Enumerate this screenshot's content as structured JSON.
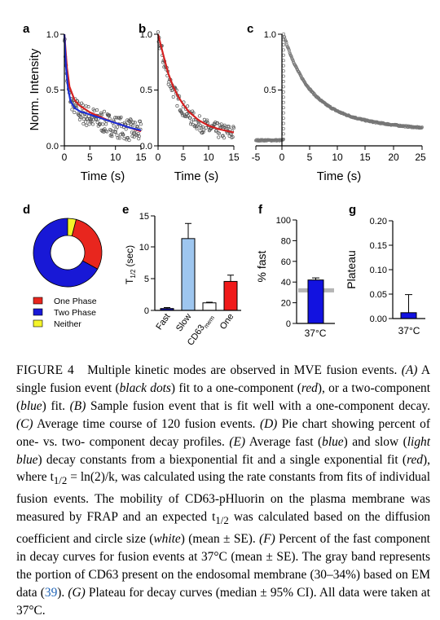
{
  "panels": {
    "a": {
      "letter": "a",
      "ylabel": "Norm. Intensity",
      "xlabel": "Time (s)",
      "yticks": [
        "0.0",
        "0.5",
        "1.0"
      ],
      "xticks": [
        "0",
        "5",
        "10",
        "15"
      ]
    },
    "b": {
      "letter": "b",
      "xlabel": "Time (s)",
      "yticks": [
        "0.0",
        "0.5",
        "1.0"
      ],
      "xticks": [
        "0",
        "5",
        "10",
        "15"
      ]
    },
    "c": {
      "letter": "c",
      "xlabel": "Time (s)",
      "yticks": [
        "0.5",
        "1.0"
      ],
      "xticks": [
        "-5",
        "0",
        "5",
        "10",
        "15",
        "20",
        "25"
      ]
    },
    "d": {
      "letter": "d",
      "legend": [
        "One Phase",
        "Two Phase",
        "Neither"
      ]
    },
    "e": {
      "letter": "e",
      "ylabel_main": "T",
      "ylabel_sub": "1/2",
      "ylabel_unit": "(sec)",
      "yticks": [
        "0",
        "5",
        "10",
        "15"
      ],
      "cat_fast": "Fast",
      "cat_slow": "Slow",
      "cat_cd63": "CD63",
      "cat_cd63_sub": "mem",
      "cat_one": "One"
    },
    "f": {
      "letter": "f",
      "ylabel": "% fast",
      "yticks": [
        "0",
        "20",
        "40",
        "60",
        "80",
        "100"
      ],
      "xtick": "37°C"
    },
    "g": {
      "letter": "g",
      "ylabel": "Plateau",
      "yticks": [
        "0.00",
        "0.05",
        "0.10",
        "0.15",
        "0.20"
      ],
      "xtick": "37°C"
    }
  },
  "chart_data": [
    {
      "panel": "a",
      "type": "scatter",
      "xlim": [
        0,
        15
      ],
      "ylim": [
        0,
        1
      ],
      "series": [],
      "fits": [
        {
          "color": "#d42020",
          "model": "one-component",
          "points": [
            [
              0,
              1.0
            ],
            [
              0.5,
              0.7
            ],
            [
              1,
              0.53
            ],
            [
              2,
              0.41
            ],
            [
              3,
              0.36
            ],
            [
              5,
              0.3
            ],
            [
              7,
              0.26
            ],
            [
              9,
              0.22
            ],
            [
              11,
              0.19
            ],
            [
              13,
              0.16
            ],
            [
              15,
              0.13
            ]
          ]
        },
        {
          "color": "#1a2fd6",
          "model": "two-component",
          "points": [
            [
              0,
              1.0
            ],
            [
              0.3,
              0.72
            ],
            [
              0.7,
              0.52
            ],
            [
              1.2,
              0.4
            ],
            [
              2,
              0.34
            ],
            [
              3,
              0.31
            ],
            [
              5,
              0.28
            ],
            [
              7,
              0.25
            ],
            [
              9,
              0.22
            ],
            [
              11,
              0.19
            ],
            [
              13,
              0.16
            ],
            [
              15,
              0.14
            ]
          ]
        }
      ]
    },
    {
      "panel": "b",
      "type": "scatter",
      "xlim": [
        0,
        15
      ],
      "ylim": [
        0,
        1
      ],
      "series": [],
      "fits": [
        {
          "color": "#d42020",
          "model": "one-component",
          "points": [
            [
              0,
              1.0
            ],
            [
              1,
              0.82
            ],
            [
              2,
              0.65
            ],
            [
              3,
              0.53
            ],
            [
              4,
              0.44
            ],
            [
              5,
              0.37
            ],
            [
              6,
              0.31
            ],
            [
              8,
              0.23
            ],
            [
              10,
              0.18
            ],
            [
              12,
              0.15
            ],
            [
              15,
              0.12
            ]
          ]
        }
      ]
    },
    {
      "panel": "c",
      "type": "line",
      "xlim": [
        -5,
        25
      ],
      "ylim": [
        0,
        1
      ],
      "series": []
    },
    {
      "panel": "d",
      "type": "pie",
      "categories": [
        "One Phase",
        "Two Phase",
        "Neither"
      ],
      "values": [
        0.29,
        0.67,
        0.04
      ],
      "colors": [
        "#e8261e",
        "#1818d6",
        "#f5f52a"
      ]
    },
    {
      "panel": "e",
      "type": "bar",
      "categories": [
        "Fast",
        "Slow",
        "CD63mem",
        "One"
      ],
      "values": [
        0.3,
        11.4,
        1.2,
        4.6
      ],
      "errors": [
        0.15,
        2.4,
        0.1,
        1.0
      ],
      "colors": [
        "#1414a8",
        "#9ec6ef",
        "#ffffff",
        "#f01a1a"
      ],
      "ylim": [
        0,
        15
      ]
    },
    {
      "panel": "f",
      "type": "bar",
      "categories": [
        "37°C"
      ],
      "values": [
        42
      ],
      "errors": [
        2
      ],
      "colors": [
        "#1212e0"
      ],
      "band": [
        30,
        34
      ],
      "ylim": [
        0,
        100
      ]
    },
    {
      "panel": "g",
      "type": "bar",
      "categories": [
        "37°C"
      ],
      "values": [
        0.012
      ],
      "errors": [
        0.037
      ],
      "colors": [
        "#1212e0"
      ],
      "ylim": [
        0,
        0.2
      ]
    }
  ],
  "caption": {
    "label": "FIGURE 4",
    "title": "Multiple kinetic modes are observed in MVE fusion events.",
    "s1": "(A)",
    "s2": "A single fusion event (",
    "s3": "black dots",
    "s4": ") fit to a one-component (",
    "s5": "red",
    "s6": "), or a two-component (",
    "s7": "blue",
    "s8": ") fit.",
    "s9": "(B)",
    "s10": "Sample fusion event that is fit well with a one-component decay.",
    "s11": "(C)",
    "s12": "Average time course of 120 fusion events.",
    "s13": "(D)",
    "s14": "Pie chart showing percent of one- vs. two- component decay profiles.",
    "s15": "(E)",
    "s16": "Average fast (",
    "s17": "blue",
    "s18": ") and slow (",
    "s19": "light blue",
    "s20": ") decay constants from a biexponential fit and a single exponential fit (",
    "s21": "red",
    "s22": "), where t",
    "s23": "1/2",
    "s24": "= ln(2)/k, was calculated using the rate constants from fits of individual fusion events. The mobility of CD63-pHluorin on the plasma membrane was measured by FRAP and an expected t",
    "s25": "1/2",
    "s26": "was calculated based on the diffusion coefficient and circle size (",
    "s27": "white",
    "s28": ") (mean ± SE).",
    "s29": "(F)",
    "s30": "Percent of the fast component in decay curves for fusion events at 37°C (mean ± SE). The gray band represents the portion of CD63 present on the endosomal membrane (30–34%) based on EM data (",
    "s31": "39",
    "s32": ").",
    "s33": "(G)",
    "s34": "Plateau for decay curves (median ± 95% CI). All data were taken at 37°C."
  }
}
